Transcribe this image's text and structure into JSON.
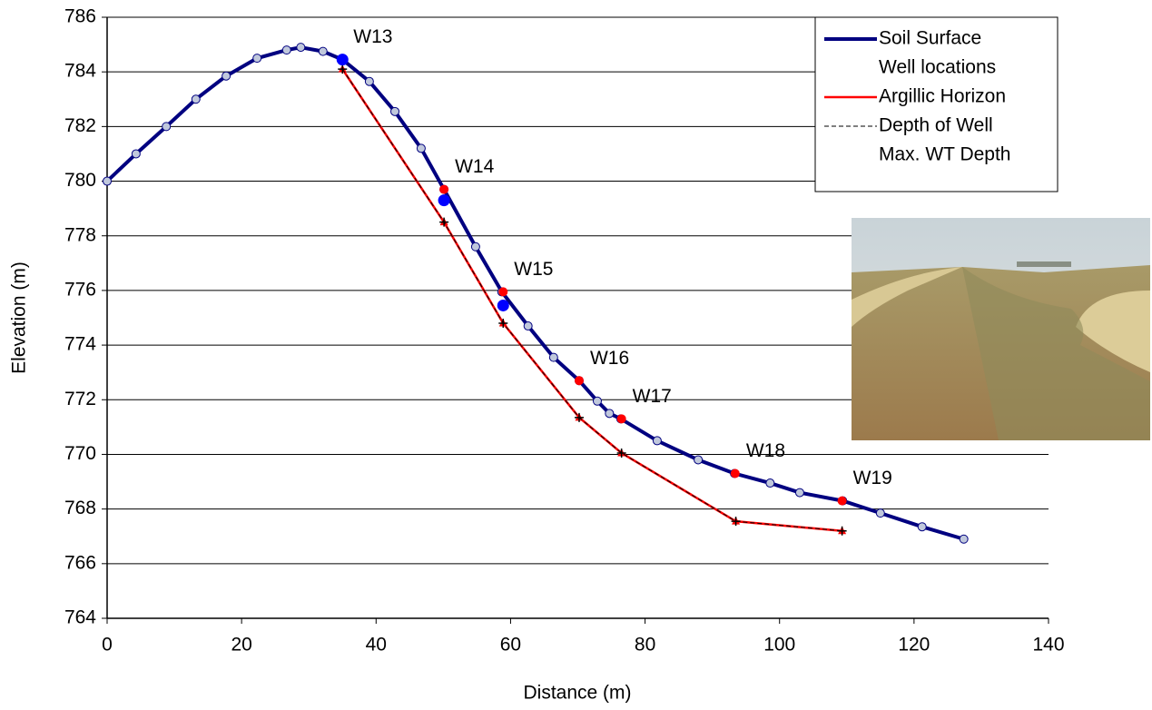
{
  "chart_data": {
    "type": "line",
    "xlabel": "Distance (m)",
    "ylabel": "Elevation (m)",
    "xlim": [
      0,
      140
    ],
    "xticks": [
      0,
      20,
      40,
      60,
      80,
      100,
      120,
      140
    ],
    "ylim": [
      764,
      786
    ],
    "yticks": [
      764,
      766,
      768,
      770,
      772,
      774,
      776,
      778,
      780,
      782,
      784,
      786
    ],
    "grid": true,
    "legend": "upper right",
    "annotations": [
      "W13",
      "W14",
      "W15",
      "W16",
      "W17",
      "W18",
      "W19"
    ],
    "series": [
      {
        "name": "Soil Surface",
        "color": "#000080",
        "line": true,
        "marker": "circle",
        "x": [
          0,
          4.3,
          8.8,
          13.2,
          17.7,
          22.3,
          26.7,
          28.8,
          32.1,
          35,
          39,
          42.8,
          46.7,
          50.1,
          54.8,
          58.7,
          62.6,
          66.4,
          70.2,
          72.9,
          74.7,
          76.4,
          81.8,
          87.9,
          93.3,
          98.6,
          103,
          109.4,
          115,
          121.2,
          127.4
        ],
        "values": [
          780,
          781,
          782,
          783,
          783.85,
          784.5,
          784.8,
          784.9,
          784.75,
          784.45,
          783.65,
          782.55,
          781.2,
          779.7,
          777.6,
          775.95,
          774.7,
          773.55,
          772.7,
          771.95,
          771.5,
          771.3,
          770.5,
          769.8,
          769.3,
          768.95,
          768.6,
          768.3,
          767.85,
          767.35,
          766.9
        ]
      },
      {
        "name": "Well locations",
        "color": "#ff0000",
        "line": false,
        "marker": "dot",
        "x": [
          35,
          50.1,
          58.9,
          70.2,
          76.5,
          93.4,
          109.3
        ],
        "values": [
          784.45,
          779.7,
          775.95,
          772.7,
          771.3,
          769.3,
          768.3
        ]
      },
      {
        "name": "Argillic Horizon",
        "color": "#ff0000",
        "line": true,
        "marker": "triangle",
        "x": [
          35,
          50.1,
          58.9,
          70.2,
          76.5,
          93.5,
          109.3
        ],
        "values": [
          784.1,
          778.5,
          774.8,
          771.35,
          770.05,
          767.55,
          767.2
        ]
      },
      {
        "name": "Depth of Well",
        "color": "#000000",
        "line": true,
        "dash": true,
        "marker": "plus",
        "x": [
          35,
          50.1,
          58.9,
          70.2,
          76.5,
          93.5,
          109.3
        ],
        "values": [
          784.1,
          778.5,
          774.8,
          771.35,
          770.05,
          767.55,
          767.2
        ]
      },
      {
        "name": "Max. WT Depth",
        "color": "#0000ff",
        "line": false,
        "marker": "bigdot",
        "x": [
          35,
          50.1,
          58.9
        ],
        "values": [
          784.45,
          779.3,
          775.45
        ]
      }
    ]
  }
}
